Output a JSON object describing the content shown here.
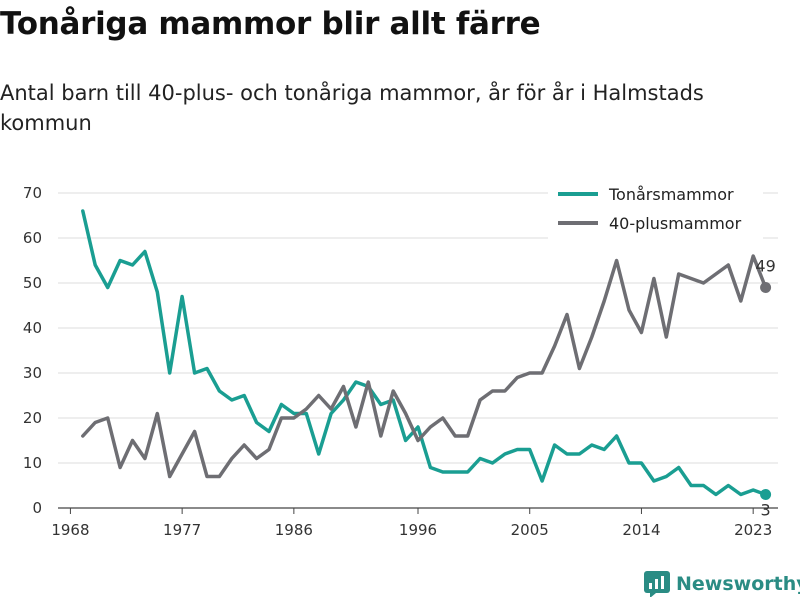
{
  "chart_data": {
    "type": "line",
    "title": "Tonåriga mammor blir allt färre",
    "subtitle": "Antal barn till 40-plus- och tonåriga mammor, år för år i Halmstads kommun",
    "xlabel": "",
    "ylabel": "",
    "xlim": [
      1967,
      2025
    ],
    "ylim": [
      0,
      70
    ],
    "x_ticks": [
      1968,
      1977,
      1986,
      1996,
      2005,
      2014,
      2023
    ],
    "y_ticks": [
      0,
      10,
      20,
      30,
      40,
      50,
      60,
      70
    ],
    "grid": true,
    "legend_position": "top-right",
    "x": [
      1969,
      1970,
      1971,
      1972,
      1973,
      1974,
      1975,
      1976,
      1977,
      1978,
      1979,
      1980,
      1981,
      1982,
      1983,
      1984,
      1985,
      1986,
      1987,
      1988,
      1989,
      1990,
      1991,
      1992,
      1993,
      1994,
      1995,
      1996,
      1997,
      1998,
      1999,
      2000,
      2001,
      2002,
      2003,
      2004,
      2005,
      2006,
      2007,
      2008,
      2009,
      2010,
      2011,
      2012,
      2013,
      2014,
      2015,
      2016,
      2017,
      2018,
      2019,
      2020,
      2021,
      2022,
      2023,
      2024
    ],
    "series": [
      {
        "name": "Tonårsmammor",
        "color": "#1a9e92",
        "values": [
          66,
          54,
          49,
          55,
          54,
          57,
          48,
          30,
          47,
          30,
          31,
          26,
          24,
          25,
          19,
          17,
          23,
          21,
          21,
          12,
          21,
          24,
          28,
          27,
          23,
          24,
          15,
          18,
          9,
          8,
          8,
          8,
          11,
          10,
          12,
          13,
          13,
          6,
          14,
          12,
          12,
          14,
          13,
          16,
          10,
          10,
          6,
          7,
          9,
          5,
          5,
          3,
          5,
          3,
          4,
          3
        ],
        "end_label": "3"
      },
      {
        "name": "40-plusmammor",
        "color": "#6e6e73",
        "values": [
          16,
          19,
          20,
          9,
          15,
          11,
          21,
          7,
          12,
          17,
          7,
          7,
          11,
          14,
          11,
          13,
          20,
          20,
          22,
          25,
          22,
          27,
          18,
          28,
          16,
          26,
          21,
          15,
          18,
          20,
          16,
          16,
          24,
          26,
          26,
          29,
          30,
          30,
          36,
          43,
          31,
          38,
          46,
          55,
          44,
          39,
          51,
          38,
          52,
          51,
          50,
          52,
          54,
          46,
          56,
          49
        ],
        "end_label": "49"
      }
    ]
  },
  "brand": {
    "name": "Newsworthy",
    "icon": "newsworthy-logo-icon",
    "color": "#2a8c84"
  }
}
